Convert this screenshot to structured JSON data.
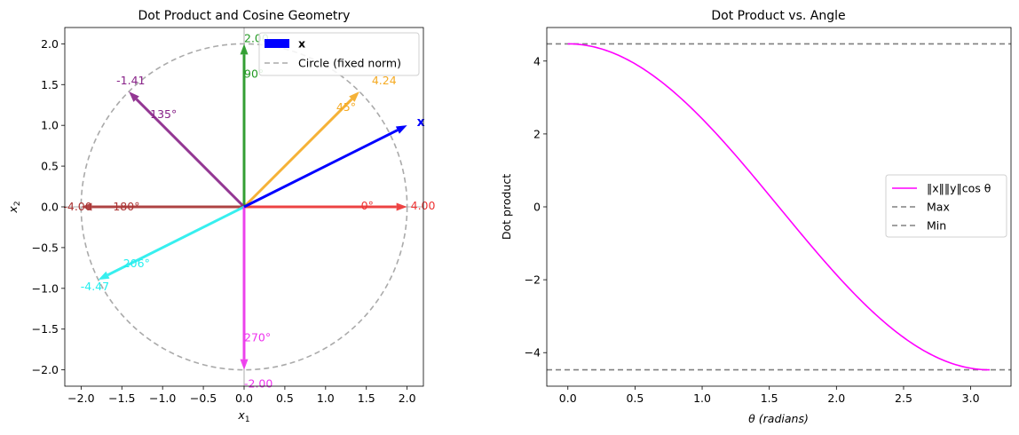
{
  "chart_data": [
    {
      "type": "scatter",
      "title": "Dot Product and Cosine Geometry",
      "xlabel": "x₁",
      "ylabel": "x₂",
      "xlim": [
        -2.2,
        2.2
      ],
      "ylim": [
        -2.2,
        2.2
      ],
      "xticks": [
        -2.0,
        -1.5,
        -1.0,
        -0.5,
        0.0,
        0.5,
        1.0,
        1.5,
        2.0
      ],
      "yticks": [
        -2.0,
        -1.5,
        -1.0,
        -0.5,
        0.0,
        0.5,
        1.0,
        1.5,
        2.0
      ],
      "tick_format": 1,
      "grid": false,
      "legend_position": "top-right",
      "legend": [
        {
          "label": "x",
          "bold": true,
          "kind": "patch",
          "color": "#0000ff"
        },
        {
          "label": "Circle (fixed norm)",
          "kind": "dashed",
          "color": "#aaaaaa"
        }
      ],
      "circle": {
        "radius": 2.0,
        "color": "#aaaaaa"
      },
      "main_vector": {
        "x": 2.0,
        "y": 1.0,
        "label": "x",
        "color": "#0000ff"
      },
      "vectors": [
        {
          "angle_deg": 0,
          "angle_label": "0°",
          "dot": "4.00",
          "x": 2.0,
          "y": 0.0,
          "color": "#ee3333"
        },
        {
          "angle_deg": 45,
          "angle_label": "45°",
          "dot": "4.24",
          "x": 1.414,
          "y": 1.414,
          "color": "#f5aa22"
        },
        {
          "angle_deg": 90,
          "angle_label": "90°",
          "dot": "2.00",
          "x": 0.0,
          "y": 2.0,
          "color": "#229922"
        },
        {
          "angle_deg": 135,
          "angle_label": "135°",
          "dot": "-1.41",
          "x": -1.414,
          "y": 1.414,
          "color": "#882288"
        },
        {
          "angle_deg": 180,
          "angle_label": "180°",
          "dot": "-4.00",
          "x": -2.0,
          "y": 0.0,
          "color": "#aa3333"
        },
        {
          "angle_deg": 206,
          "angle_label": "206°",
          "dot": "-4.47",
          "x": -1.789,
          "y": -0.894,
          "color": "#22eeee"
        },
        {
          "angle_deg": 270,
          "angle_label": "270°",
          "dot": "-2.00",
          "x": 0.0,
          "y": -2.0,
          "color": "#ee33ee"
        }
      ]
    },
    {
      "type": "line",
      "title": "Dot Product vs. Angle",
      "xlabel": "θ (radians)",
      "ylabel": "Dot product",
      "xlim": [
        -0.157,
        3.3
      ],
      "ylim": [
        -4.92,
        4.92
      ],
      "xticks": [
        0.0,
        0.5,
        1.0,
        1.5,
        2.0,
        2.5,
        3.0
      ],
      "yticks": [
        -4,
        -2,
        0,
        2,
        4
      ],
      "xtick_format": 1,
      "ytick_format": 0,
      "grid": false,
      "legend_position": "center-right",
      "series": [
        {
          "name": "‖x‖‖y‖cos θ",
          "function": "4.472*cos(theta)",
          "x_range": [
            0,
            3.14159
          ],
          "color": "#ff00ff"
        }
      ],
      "hlines": [
        {
          "name": "Max",
          "y": 4.472,
          "color": "#808080"
        },
        {
          "name": "Min",
          "y": -4.472,
          "color": "#808080"
        }
      ]
    }
  ]
}
